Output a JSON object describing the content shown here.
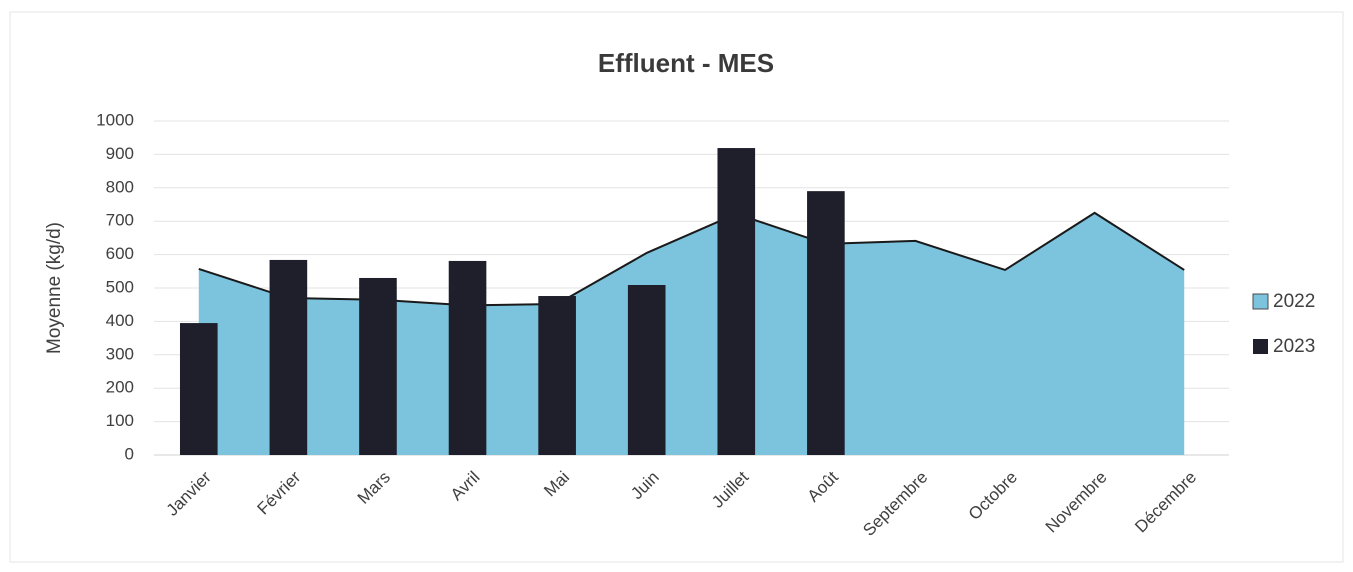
{
  "chart_data": {
    "type": "combo",
    "title": "Effluent - MES",
    "y_label": "Moyenne (kg/d)",
    "categories": [
      "Janvier",
      "Février",
      "Mars",
      "Avril",
      "Mai",
      "Juin",
      "Juillet",
      "Août",
      "Septembre",
      "Octobre",
      "Novembre",
      "Décembre"
    ],
    "series": [
      {
        "name": "2022",
        "type": "area",
        "color": "#7cc3de",
        "values": [
          557,
          470,
          465,
          448,
          452,
          605,
          722,
          632,
          641,
          554,
          725,
          554
        ]
      },
      {
        "name": "2023",
        "type": "bar",
        "color": "#1f1f2b",
        "values": [
          395,
          584,
          530,
          581,
          476,
          509,
          919,
          790,
          null,
          null,
          null,
          null
        ]
      }
    ],
    "ylim": [
      0,
      1000
    ],
    "yticks": [
      0,
      100,
      200,
      300,
      400,
      500,
      600,
      700,
      800,
      900,
      1000
    ],
    "grid": true,
    "legend": "right"
  }
}
